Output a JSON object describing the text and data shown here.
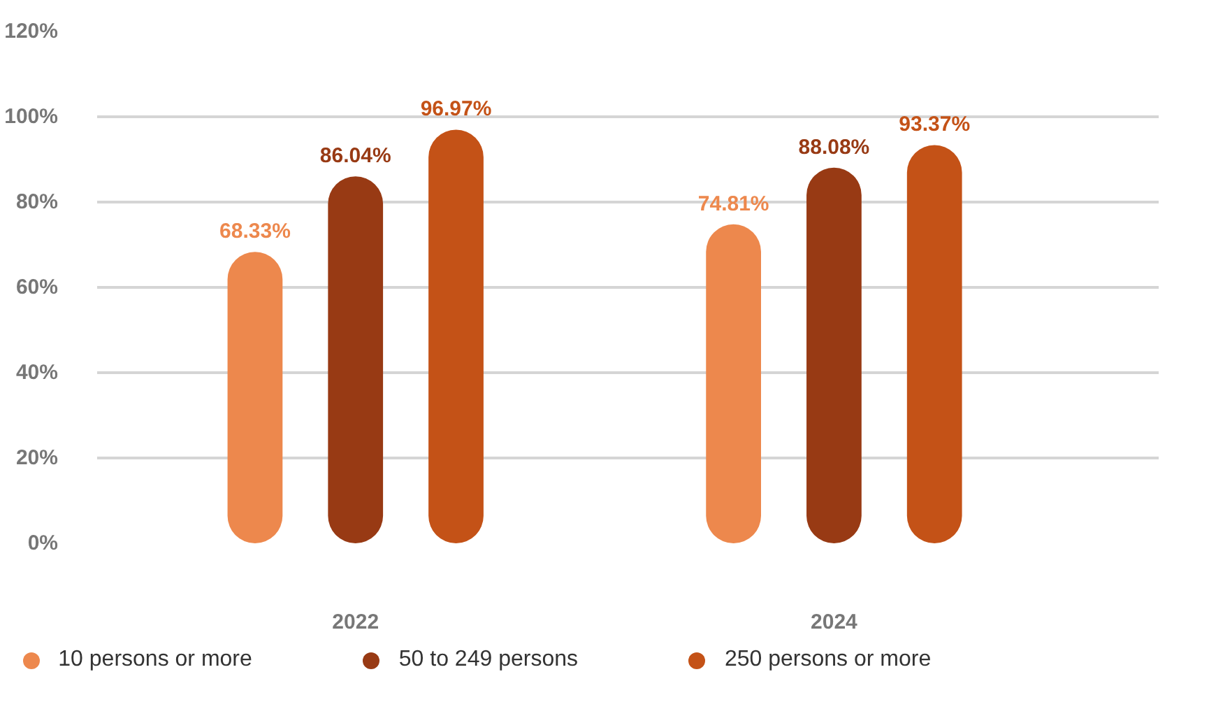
{
  "chart_data": {
    "type": "bar",
    "categories": [
      "2022",
      "2024"
    ],
    "series": [
      {
        "name": "10 persons or more",
        "color": "#ed884d",
        "values": [
          68.33,
          74.81
        ],
        "value_labels": [
          "68.33%",
          "74.81%"
        ]
      },
      {
        "name": "50 to 249 persons",
        "color": "#983a14",
        "values": [
          86.04,
          88.08
        ],
        "value_labels": [
          "86.04%",
          "88.08%"
        ]
      },
      {
        "name": "250 persons or more",
        "color": "#c45217",
        "values": [
          96.97,
          93.37
        ],
        "value_labels": [
          "96.97%",
          "93.37%"
        ]
      }
    ],
    "ylim": [
      0,
      120
    ],
    "yticks": [
      {
        "value": 0,
        "label": "0%"
      },
      {
        "value": 20,
        "label": "20%"
      },
      {
        "value": 40,
        "label": "40%"
      },
      {
        "value": 60,
        "label": "60%"
      },
      {
        "value": 80,
        "label": "80%"
      },
      {
        "value": 100,
        "label": "100%"
      },
      {
        "value": 120,
        "label": "120%"
      }
    ],
    "grid": "y",
    "legend": "bottom"
  }
}
